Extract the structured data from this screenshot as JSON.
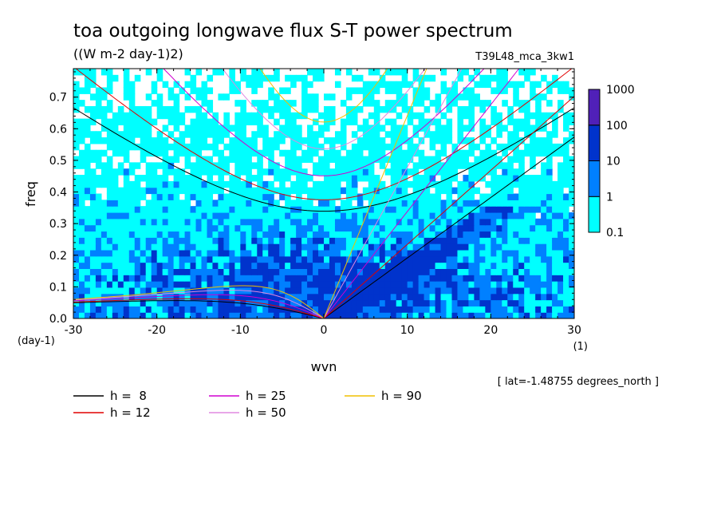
{
  "chart_data": {
    "type": "heatmap",
    "title": "toa outgoing longwave flux S-T power spectrum",
    "subtitle": "((W m-2 day-1)2)",
    "run_label": "T39L48_mca_3kw1",
    "xlabel": "wvn",
    "ylabel": "freq",
    "x_unit": "(1)",
    "y_unit": "(day-1)",
    "xlim": [
      -30,
      30
    ],
    "ylim": [
      0,
      0.79
    ],
    "xticks": [
      -30,
      -20,
      -10,
      0,
      10,
      20,
      30
    ],
    "xtick_labels": [
      "-30",
      "-20",
      "-10",
      "0",
      "10",
      "20",
      "30"
    ],
    "yticks": [
      0,
      0.1,
      0.2,
      0.3,
      0.4,
      0.5,
      0.6,
      0.7
    ],
    "ytick_labels": [
      "0.0",
      "0.1",
      "0.2",
      "0.3",
      "0.4",
      "0.5",
      "0.6",
      "0.7"
    ],
    "colorbar": {
      "levels": [
        "0.1",
        "1",
        "10",
        "100",
        "1000"
      ],
      "colors": [
        "#00ffff",
        "#0080ff",
        "#0033cc",
        "#1a1aa8",
        "#5020b8"
      ]
    },
    "dispersion_curves": [
      {
        "name": "h =  8",
        "h": 8,
        "color": "#000000"
      },
      {
        "name": "h = 12",
        "h": 12,
        "color": "#e00000"
      },
      {
        "name": "h = 25",
        "h": 25,
        "color": "#d000d0"
      },
      {
        "name": "h = 50",
        "h": 50,
        "color": "#e088e0"
      },
      {
        "name": "h = 90",
        "h": 90,
        "color": "#f0c000"
      }
    ],
    "annotation": "[ lat=-1.48755 degrees_north ]"
  }
}
